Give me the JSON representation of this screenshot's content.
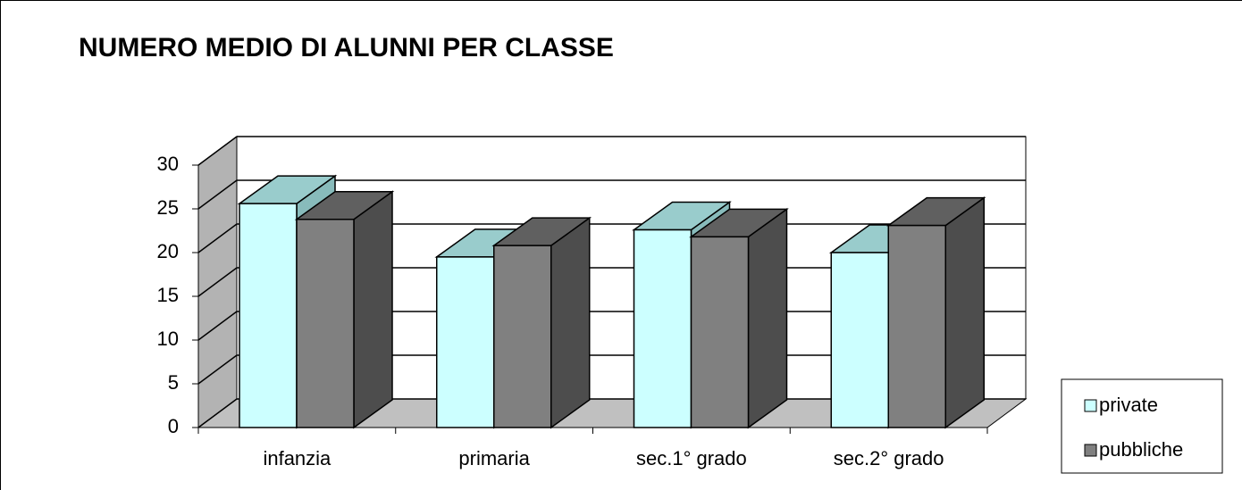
{
  "chart_data": {
    "type": "bar3d",
    "title": "NUMERO MEDIO DI ALUNNI PER CLASSE",
    "categories": [
      "infanzia",
      "primaria",
      "sec.1° grado",
      "sec.2° grado"
    ],
    "series": [
      {
        "name": "private",
        "color": "#ccffff",
        "values": [
          25.6,
          19.5,
          22.6,
          20.0
        ]
      },
      {
        "name": "pubbliche",
        "color": "#808080",
        "values": [
          23.8,
          20.8,
          21.8,
          23.1
        ]
      }
    ],
    "ylim": [
      0,
      30
    ],
    "yticks": [
      0,
      5,
      10,
      15,
      20,
      25,
      30
    ],
    "grid": true,
    "legend": "right"
  }
}
